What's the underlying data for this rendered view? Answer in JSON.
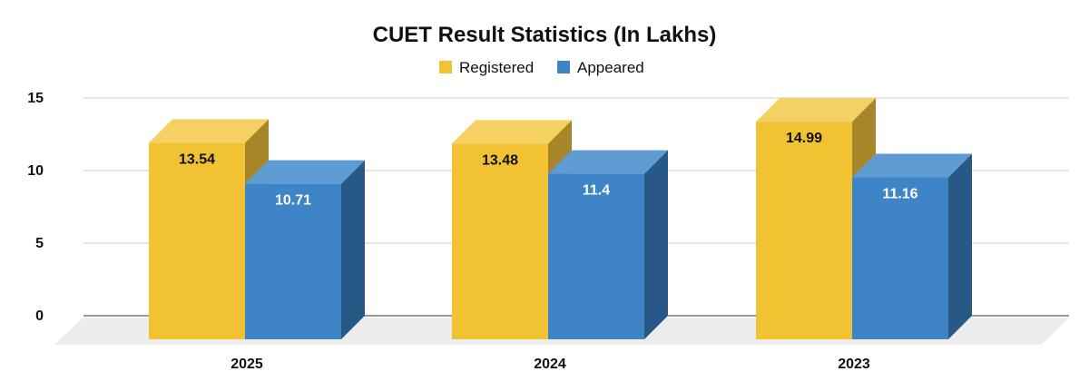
{
  "chart_data": {
    "type": "bar",
    "title": "CUET Result Statistics (In Lakhs)",
    "categories": [
      "2025",
      "2024",
      "2023"
    ],
    "series": [
      {
        "name": "Registered",
        "values": [
          13.54,
          13.48,
          14.99
        ],
        "color": "#f1c232",
        "side_color": "#a7862a",
        "top_color": "#f4d162",
        "label_color": "#111111"
      },
      {
        "name": "Appeared",
        "values": [
          10.71,
          11.4,
          11.16
        ],
        "color": "#3d85c6",
        "side_color": "#285886",
        "top_color": "#5e9bd3",
        "label_color": "#ffffff"
      }
    ],
    "y_ticks": [
      0,
      5,
      10,
      15
    ],
    "ylim": [
      0,
      15
    ],
    "grid": true,
    "legend_position": "top-center",
    "style": "3d"
  }
}
